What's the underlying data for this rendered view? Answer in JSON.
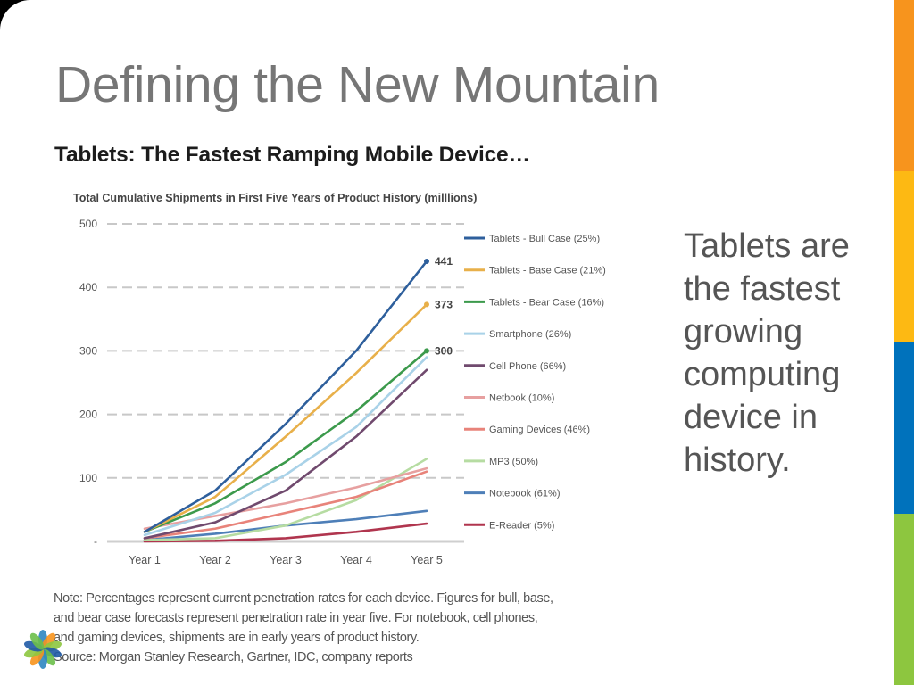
{
  "slide": {
    "title": "Defining the New Mountain",
    "chart_heading": "Tablets: The Fastest Ramping Mobile Device…",
    "side_text": "Tablets are the fastest growing computing device in history.",
    "note_lines": [
      "Note: Percentages represent current penetration rates for each device. Figures for bull, base,",
      "and bear case forecasts represent penetration rate in year five. For notebook, cell phones,",
      "and gaming devices, shipments are in early years of product history.",
      "Source: Morgan Stanley Research, Gartner, IDC, company reports"
    ],
    "stripe_colors": [
      "#f7941d",
      "#fdb913",
      "#0072bc",
      "#8dc63f"
    ],
    "logo_colors": [
      "#2e86c1",
      "#f7941d",
      "#8dc63f",
      "#1f5aa6",
      "#6bbf4a"
    ]
  },
  "chart_data": {
    "type": "line",
    "title": "Total Cumulative Shipments in First Five Years of Product History (milllions)",
    "x": [
      "Year 1",
      "Year 2",
      "Year 3",
      "Year 4",
      "Year 5"
    ],
    "ylim": [
      0,
      500
    ],
    "yticks": [
      0,
      100,
      200,
      300,
      400,
      500
    ],
    "ytick_labels": [
      "-",
      "100",
      "200",
      "300",
      "400",
      "500"
    ],
    "grid": "dashed horizontal",
    "legend_position": "right",
    "series": [
      {
        "name": "Tablets - Bull Case (25%)",
        "color": "#2e5f9c",
        "values": [
          15,
          80,
          185,
          300,
          441
        ],
        "end_label": "441"
      },
      {
        "name": "Tablets - Base Case (21%)",
        "color": "#e8b04a",
        "values": [
          15,
          70,
          165,
          265,
          373
        ],
        "end_label": "373"
      },
      {
        "name": "Tablets - Bear Case (16%)",
        "color": "#3c9a4c",
        "values": [
          15,
          60,
          125,
          205,
          300
        ],
        "end_label": "300"
      },
      {
        "name": "Smartphone (26%)",
        "color": "#a9d2e8",
        "values": [
          10,
          45,
          105,
          180,
          290
        ]
      },
      {
        "name": "Cell Phone (66%)",
        "color": "#704a6e",
        "values": [
          5,
          30,
          80,
          165,
          270
        ]
      },
      {
        "name": "Netbook (10%)",
        "color": "#e7a0a0",
        "values": [
          20,
          40,
          60,
          85,
          115
        ]
      },
      {
        "name": "Gaming Devices (46%)",
        "color": "#e8837a",
        "values": [
          5,
          20,
          45,
          70,
          110
        ]
      },
      {
        "name": "MP3 (50%)",
        "color": "#b6dca2",
        "values": [
          2,
          5,
          25,
          65,
          130
        ]
      },
      {
        "name": "Notebook (61%)",
        "color": "#4e7fb8",
        "values": [
          2,
          12,
          25,
          35,
          48
        ]
      },
      {
        "name": "E-Reader (5%)",
        "color": "#b0354e",
        "values": [
          0,
          1,
          5,
          15,
          28
        ]
      }
    ]
  }
}
